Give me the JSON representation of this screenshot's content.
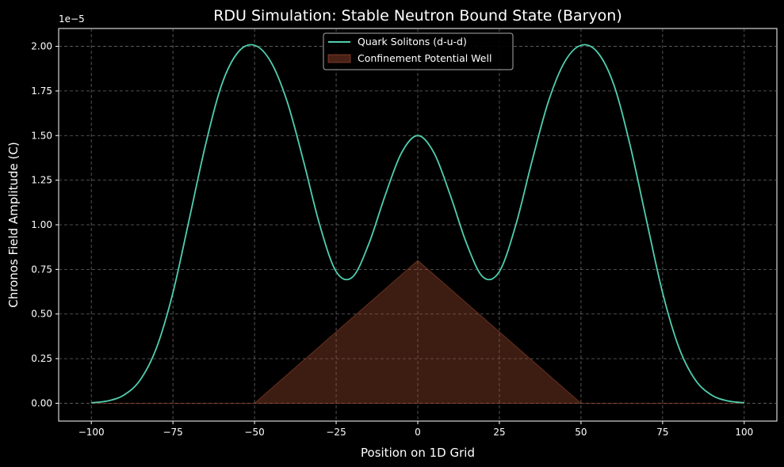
{
  "chart_data": {
    "type": "line",
    "title": "RDU Simulation: Stable Neutron Bound State (Baryon)",
    "xlabel": "Position on 1D Grid",
    "ylabel": "Chronos Field Amplitude (C)",
    "offset_text": "1e−5",
    "xlim": [
      -110,
      110
    ],
    "ylim": [
      -0.1,
      2.1
    ],
    "xticks": [
      -100,
      -75,
      -50,
      -25,
      0,
      25,
      50,
      75,
      100
    ],
    "xtick_labels": [
      "−100",
      "−75",
      "−50",
      "−25",
      "0",
      "25",
      "50",
      "75",
      "100"
    ],
    "yticks": [
      0,
      0.25,
      0.5,
      0.75,
      1.0,
      1.25,
      1.5,
      1.75,
      2.0
    ],
    "ytick_labels": [
      "0.00",
      "0.25",
      "0.50",
      "0.75",
      "1.00",
      "1.25",
      "1.50",
      "1.75",
      "2.00"
    ],
    "grid": true,
    "legend_position": "upper-center",
    "series": [
      {
        "name": "Quark Solitons (d-u-d)",
        "kind": "line",
        "color": "#4fcfae",
        "x": [
          -100,
          -95,
          -90,
          -85,
          -80,
          -75,
          -70,
          -65,
          -60,
          -55,
          -50,
          -45,
          -40,
          -35,
          -30,
          -25,
          -20,
          -15,
          -10,
          -5,
          0,
          5,
          10,
          15,
          20,
          25,
          30,
          35,
          40,
          45,
          50,
          55,
          60,
          65,
          70,
          75,
          80,
          85,
          90,
          95,
          100
        ],
        "y": [
          0.003,
          0.013,
          0.046,
          0.131,
          0.312,
          0.619,
          1.031,
          1.449,
          1.788,
          1.968,
          2.006,
          1.913,
          1.69,
          1.357,
          0.997,
          0.738,
          0.707,
          0.893,
          1.164,
          1.402,
          1.5,
          1.402,
          1.164,
          0.893,
          0.707,
          0.738,
          0.997,
          1.357,
          1.69,
          1.913,
          2.006,
          1.968,
          1.788,
          1.449,
          1.031,
          0.619,
          0.312,
          0.131,
          0.046,
          0.013,
          0.003
        ]
      },
      {
        "name": "Confinement Potential Well",
        "kind": "area",
        "color": "#a14a30",
        "x": [
          -100,
          -50,
          0,
          50,
          100
        ],
        "y": [
          0,
          0,
          0.8,
          0,
          0
        ]
      }
    ]
  }
}
